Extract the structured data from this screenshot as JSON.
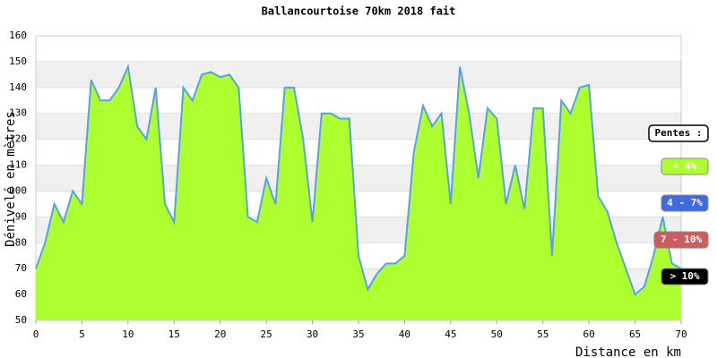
{
  "chart_data": {
    "type": "area",
    "title": "Ballancourtoise 70km 2018 fait",
    "xlabel": "Distance en km",
    "ylabel": "Dénivelé en mètres",
    "x": [
      0,
      1,
      2,
      3,
      4,
      5,
      6,
      7,
      8,
      9,
      10,
      11,
      12,
      13,
      14,
      15,
      16,
      17,
      18,
      19,
      20,
      21,
      22,
      23,
      24,
      25,
      26,
      27,
      28,
      29,
      30,
      31,
      32,
      33,
      34,
      35,
      36,
      37,
      38,
      39,
      40,
      41,
      42,
      43,
      44,
      45,
      46,
      47,
      48,
      49,
      50,
      51,
      52,
      53,
      54,
      55,
      56,
      57,
      58,
      59,
      60,
      61,
      62,
      63,
      64,
      65,
      66,
      67,
      68,
      69,
      70
    ],
    "series": [
      {
        "name": "Altitude",
        "color": "#adff2f",
        "line_color": "#5aa0e8",
        "values": [
          70,
          80,
          95,
          88,
          100,
          95,
          143,
          135,
          135,
          140,
          148,
          125,
          120,
          140,
          95,
          88,
          140,
          135,
          145,
          146,
          144,
          145,
          140,
          90,
          88,
          105,
          95,
          140,
          140,
          120,
          88,
          130,
          130,
          128,
          128,
          75,
          62,
          68,
          72,
          72,
          75,
          115,
          133,
          125,
          130,
          95,
          148,
          130,
          105,
          132,
          128,
          95,
          110,
          93,
          132,
          132,
          75,
          135,
          130,
          140,
          141,
          98,
          92,
          80,
          70,
          60,
          63,
          75,
          90,
          72,
          70
        ]
      }
    ],
    "xlim": [
      0,
      70
    ],
    "xticks": [
      0,
      5,
      10,
      15,
      20,
      25,
      30,
      35,
      40,
      45,
      50,
      55,
      60,
      65,
      70
    ],
    "ylim": [
      50,
      160
    ],
    "yticks": [
      50,
      60,
      70,
      80,
      90,
      100,
      110,
      120,
      130,
      140,
      150,
      160
    ],
    "grid": true,
    "legend": {
      "title": "Pentes :",
      "items": [
        {
          "label": "< 4%",
          "color": "#adff2f"
        },
        {
          "label": "4 - 7%",
          "color": "#4169e1"
        },
        {
          "label": "7 - 10%",
          "color": "#cd5c5c"
        },
        {
          "label": "> 10%",
          "color": "#000000"
        }
      ]
    }
  }
}
